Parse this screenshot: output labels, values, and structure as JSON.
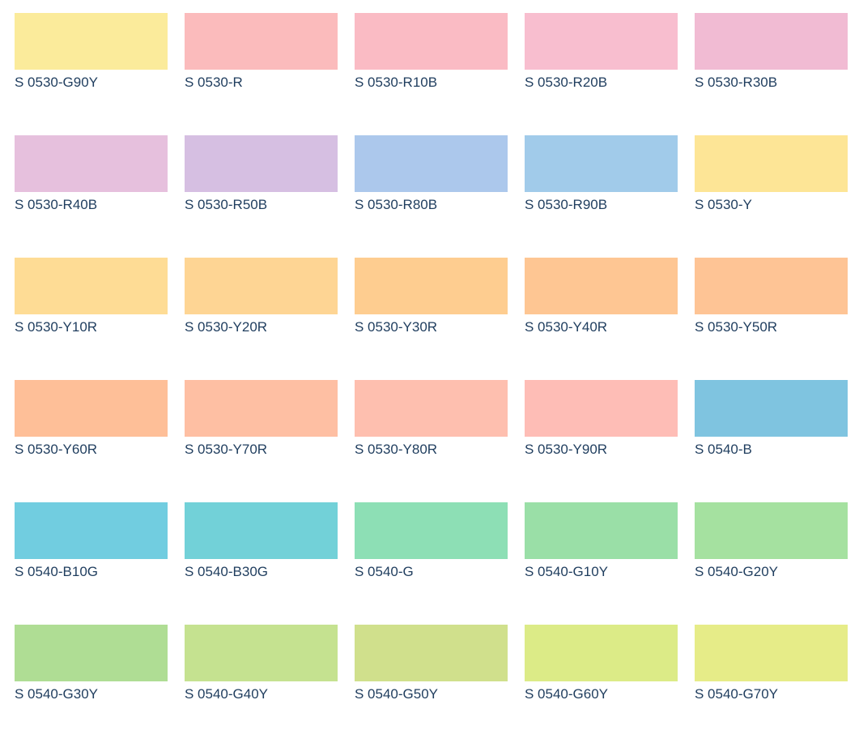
{
  "swatches": [
    {
      "label": "S 0530-G90Y",
      "color": "#fbeb9b"
    },
    {
      "label": "S 0530-R",
      "color": "#fbbbbc"
    },
    {
      "label": "S 0530-R10B",
      "color": "#fabbc4"
    },
    {
      "label": "S 0530-R20B",
      "color": "#f8becf"
    },
    {
      "label": "S 0530-R30B",
      "color": "#f1bbd3"
    },
    {
      "label": "S 0530-R40B",
      "color": "#e6c0dd"
    },
    {
      "label": "S 0530-R50B",
      "color": "#d6bfe2"
    },
    {
      "label": "S 0530-R80B",
      "color": "#acc8ec"
    },
    {
      "label": "S 0530-R90B",
      "color": "#a1cbea"
    },
    {
      "label": "S 0530-Y",
      "color": "#fde596"
    },
    {
      "label": "S 0530-Y10R",
      "color": "#fedc95"
    },
    {
      "label": "S 0530-Y20R",
      "color": "#fed594"
    },
    {
      "label": "S 0530-Y30R",
      "color": "#fecd90"
    },
    {
      "label": "S 0530-Y40R",
      "color": "#fec693"
    },
    {
      "label": "S 0530-Y50R",
      "color": "#fec495"
    },
    {
      "label": "S 0530-Y60R",
      "color": "#febf98"
    },
    {
      "label": "S 0530-Y70R",
      "color": "#febfa3"
    },
    {
      "label": "S 0530-Y80R",
      "color": "#febfaf"
    },
    {
      "label": "S 0530-Y90R",
      "color": "#febdb6"
    },
    {
      "label": "S 0540-B",
      "color": "#7fc4e0"
    },
    {
      "label": "S 0540-B10G",
      "color": "#71cde0"
    },
    {
      "label": "S 0540-B30G",
      "color": "#72d1d8"
    },
    {
      "label": "S 0540-G",
      "color": "#8ddfb5"
    },
    {
      "label": "S 0540-G10Y",
      "color": "#9adfa7"
    },
    {
      "label": "S 0540-G20Y",
      "color": "#a5e1a0"
    },
    {
      "label": "S 0540-G30Y",
      "color": "#afdd94"
    },
    {
      "label": "S 0540-G40Y",
      "color": "#c5e290"
    },
    {
      "label": "S 0540-G50Y",
      "color": "#d0e08c"
    },
    {
      "label": "S 0540-G60Y",
      "color": "#dceb87"
    },
    {
      "label": "S 0540-G70Y",
      "color": "#e6ec88"
    }
  ]
}
